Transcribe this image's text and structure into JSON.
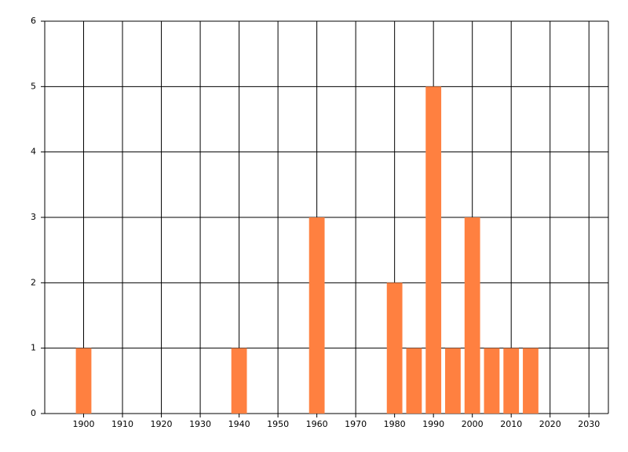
{
  "chart_data": {
    "type": "bar",
    "x": [
      1900,
      1940,
      1960,
      1980,
      1985,
      1990,
      1995,
      2000,
      2005,
      2010,
      2015
    ],
    "values": [
      1,
      1,
      3,
      2,
      1,
      5,
      1,
      3,
      1,
      1,
      1
    ],
    "color": "#ff8040",
    "xlim": [
      1890,
      2035
    ],
    "xticks": [
      1900,
      1910,
      1920,
      1930,
      1940,
      1950,
      1960,
      1970,
      1980,
      1990,
      2000,
      2010,
      2020,
      2030
    ],
    "ylim": [
      0,
      6
    ],
    "yticks": [
      0,
      1,
      2,
      3,
      4,
      5,
      6
    ],
    "grid": true
  }
}
